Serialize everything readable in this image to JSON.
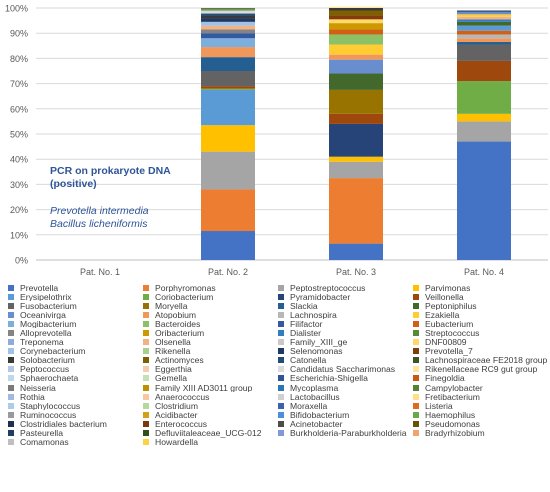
{
  "chart_data": {
    "type": "stacked-bar",
    "ylim": [
      0,
      100
    ],
    "y_ticks": [
      "0%",
      "10%",
      "20%",
      "30%",
      "40%",
      "50%",
      "60%",
      "70%",
      "80%",
      "90%",
      "100%"
    ],
    "categories": [
      "Pat. No. 1",
      "Pat. No. 2",
      "Pat. No. 3",
      "Pat. No. 4"
    ],
    "annotation": {
      "title_line1": "PCR on prokaryote DNA",
      "title_line2": "(positive)",
      "species_line1": "Prevotella intermedia",
      "species_line2": "Bacillus licheniformis"
    },
    "legend": [
      {
        "name": "Prevotella",
        "color": "#4472c4"
      },
      {
        "name": "Porphyromonas",
        "color": "#ed7d31"
      },
      {
        "name": "Peptostreptococcus",
        "color": "#a5a5a5"
      },
      {
        "name": "Parvimonas",
        "color": "#ffc000"
      },
      {
        "name": "Erysipelothrix",
        "color": "#5b9bd5"
      },
      {
        "name": "Coriobacterium",
        "color": "#70ad47"
      },
      {
        "name": "Pyramidobacter",
        "color": "#264478"
      },
      {
        "name": "Veillonella",
        "color": "#9e480e"
      },
      {
        "name": "Fusobacterium",
        "color": "#636363"
      },
      {
        "name": "Moryella",
        "color": "#997300"
      },
      {
        "name": "Slackia",
        "color": "#255e91"
      },
      {
        "name": "Peptoniphilus",
        "color": "#43682b"
      },
      {
        "name": "Oceanivirga",
        "color": "#698ed0"
      },
      {
        "name": "Atopobium",
        "color": "#f1975a"
      },
      {
        "name": "Lachnospira",
        "color": "#b7b7b7"
      },
      {
        "name": "Ezakiella",
        "color": "#ffcd33"
      },
      {
        "name": "Mogibacterium",
        "color": "#7cafdd"
      },
      {
        "name": "Bacteroides",
        "color": "#8cc168"
      },
      {
        "name": "Filifactor",
        "color": "#335aa1"
      },
      {
        "name": "Eubacterium",
        "color": "#d26012"
      },
      {
        "name": "Alloprevotella",
        "color": "#848484"
      },
      {
        "name": "Oribacterium",
        "color": "#cc9a00"
      },
      {
        "name": "Dialister",
        "color": "#327dc2"
      },
      {
        "name": "Streptococcus",
        "color": "#5a8a39"
      },
      {
        "name": "Treponema",
        "color": "#8faadc"
      },
      {
        "name": "Olsenella",
        "color": "#f4b183"
      },
      {
        "name": "Family_XIII_ge",
        "color": "#c9c9c9"
      },
      {
        "name": "DNF00809",
        "color": "#ffd966"
      },
      {
        "name": "Corynebacterium",
        "color": "#9dc3e6"
      },
      {
        "name": "Rikenella",
        "color": "#a9d18e"
      },
      {
        "name": "Selenomonas",
        "color": "#203864"
      },
      {
        "name": "Prevotella_7",
        "color": "#843c0c"
      },
      {
        "name": "Solobacterium",
        "color": "#3a3a3a"
      },
      {
        "name": "Actinomyces",
        "color": "#7f6000"
      },
      {
        "name": "Catonella",
        "color": "#1f4e79"
      },
      {
        "name": "Lachnospiraceae FE2018 group",
        "color": "#385723"
      },
      {
        "name": "Peptococcus",
        "color": "#b4c7e7"
      },
      {
        "name": "Eggerthia",
        "color": "#f8cbad"
      },
      {
        "name": "Candidatus Saccharimonas",
        "color": "#dbdbdb"
      },
      {
        "name": "Rikenellaceae RC9 gut group",
        "color": "#ffe699"
      },
      {
        "name": "Sphaerochaeta",
        "color": "#bdd7ee"
      },
      {
        "name": "Gemella",
        "color": "#c5e0b4"
      },
      {
        "name": "Escherichia-Shigella",
        "color": "#2f5597"
      },
      {
        "name": "Finegoldia",
        "color": "#c55a11"
      },
      {
        "name": "Neisseria",
        "color": "#7b7b7b"
      },
      {
        "name": "Family XIII AD3011 group",
        "color": "#bf9000"
      },
      {
        "name": "Mycoplasma",
        "color": "#2e75b6"
      },
      {
        "name": "Campylobacter",
        "color": "#548235"
      },
      {
        "name": "Rothia",
        "color": "#a4b9e0"
      },
      {
        "name": "Anaerococcus",
        "color": "#f7c6a3"
      },
      {
        "name": "Lactobacillus",
        "color": "#d0d0d0"
      },
      {
        "name": "Fretibacterium",
        "color": "#ffe08a"
      },
      {
        "name": "Staphylococcus",
        "color": "#a9cdeb"
      },
      {
        "name": "Clostridium",
        "color": "#b5d99c"
      },
      {
        "name": "Moraxella",
        "color": "#3c63a9"
      },
      {
        "name": "Listeria",
        "color": "#e06a22"
      },
      {
        "name": "Ruminococcus",
        "color": "#9a9a9a"
      },
      {
        "name": "Acidibacter",
        "color": "#d4a017"
      },
      {
        "name": "Bifidobacterium",
        "color": "#4a90d9"
      },
      {
        "name": "Haemophilus",
        "color": "#6aa84f"
      },
      {
        "name": "Clostridiales bacterium",
        "color": "#1c2f55"
      },
      {
        "name": "Enterococcus",
        "color": "#7a3a10"
      },
      {
        "name": "Acinetobacter",
        "color": "#4d4d4d"
      },
      {
        "name": "Pseudomonas",
        "color": "#6b5200"
      },
      {
        "name": "Pasteurella",
        "color": "#1d3f66"
      },
      {
        "name": "Defluviitaleaceae_UCG-012",
        "color": "#30501e"
      },
      {
        "name": "Burkholderia-Paraburkholderia",
        "color": "#8497d6"
      },
      {
        "name": "Bradyrhizobium",
        "color": "#f2a36b"
      },
      {
        "name": "Comamonas",
        "color": "#bfbfbf"
      },
      {
        "name": "Howardella",
        "color": "#ffd23f"
      }
    ],
    "stacks": [
      [],
      [
        {
          "genus": "Prevotella",
          "value": 11.5
        },
        {
          "genus": "Porphyromonas",
          "value": 16.5
        },
        {
          "genus": "Peptostreptococcus",
          "value": 15.0
        },
        {
          "genus": "Parvimonas",
          "value": 10.5
        },
        {
          "genus": "Erysipelothrix",
          "value": 14.0
        },
        {
          "genus": "Coriobacterium",
          "value": 0.5
        },
        {
          "genus": "Veillonella",
          "value": 1.0
        },
        {
          "genus": "Fusobacterium",
          "value": 6.0
        },
        {
          "genus": "Slackia",
          "value": 5.5
        },
        {
          "genus": "Atopobium",
          "value": 4.0
        },
        {
          "genus": "Mogibacterium",
          "value": 3.5
        },
        {
          "genus": "Filifactor",
          "value": 2.0
        },
        {
          "genus": "Alloprevotella",
          "value": 1.5
        },
        {
          "genus": "Olsenella",
          "value": 1.5
        },
        {
          "genus": "Corynebacterium",
          "value": 1.5
        },
        {
          "genus": "Selenomonas",
          "value": 1.5
        },
        {
          "genus": "Solobacterium",
          "value": 1.0
        },
        {
          "genus": "Catonella",
          "value": 0.8
        },
        {
          "genus": "Candidatus Saccharimonas",
          "value": 0.7
        },
        {
          "genus": "Gemella",
          "value": 0.5
        },
        {
          "genus": "Neisseria",
          "value": 0.5
        },
        {
          "genus": "Campylobacter",
          "value": 0.5
        }
      ],
      [
        {
          "genus": "Prevotella",
          "value": 6.5
        },
        {
          "genus": "Porphyromonas",
          "value": 26.0
        },
        {
          "genus": "Peptostreptococcus",
          "value": 6.5
        },
        {
          "genus": "Parvimonas",
          "value": 2.0
        },
        {
          "genus": "Pyramidobacter",
          "value": 13.0
        },
        {
          "genus": "Veillonella",
          "value": 4.0
        },
        {
          "genus": "Moryella",
          "value": 9.5
        },
        {
          "genus": "Peptoniphilus",
          "value": 6.5
        },
        {
          "genus": "Oceanivirga",
          "value": 5.5
        },
        {
          "genus": "Atopobium",
          "value": 2.0
        },
        {
          "genus": "Ezakiella",
          "value": 4.0
        },
        {
          "genus": "Bacteroides",
          "value": 4.0
        },
        {
          "genus": "Eubacterium",
          "value": 2.0
        },
        {
          "genus": "Oribacterium",
          "value": 2.5
        },
        {
          "genus": "DNF00809",
          "value": 1.5
        },
        {
          "genus": "Prevotella_7",
          "value": 1.5
        },
        {
          "genus": "Actinomyces",
          "value": 2.0
        },
        {
          "genus": "Solobacterium",
          "value": 1.0
        },
        {
          "genus": "Rikenellaceae RC9 gut group",
          "value": 0.5
        }
      ],
      [
        {
          "genus": "Prevotella",
          "value": 47.0
        },
        {
          "genus": "Peptostreptococcus",
          "value": 8.0
        },
        {
          "genus": "Parvimonas",
          "value": 3.0
        },
        {
          "genus": "Coriobacterium",
          "value": 13.0
        },
        {
          "genus": "Veillonella",
          "value": 8.0
        },
        {
          "genus": "Fusobacterium",
          "value": 6.5
        },
        {
          "genus": "Slackia",
          "value": 1.0
        },
        {
          "genus": "Atopobium",
          "value": 1.5
        },
        {
          "genus": "Lachnospira",
          "value": 1.5
        },
        {
          "genus": "Eubacterium",
          "value": 1.5
        },
        {
          "genus": "Erysipelothrix",
          "value": 2.0
        },
        {
          "genus": "Peptoniphilus",
          "value": 1.5
        },
        {
          "genus": "Dialister",
          "value": 1.0
        },
        {
          "genus": "Olsenella",
          "value": 1.0
        },
        {
          "genus": "Ezakiella",
          "value": 1.0
        },
        {
          "genus": "Oceanivirga",
          "value": 1.0
        },
        {
          "genus": "Selenomonas",
          "value": 0.5
        }
      ]
    ]
  }
}
